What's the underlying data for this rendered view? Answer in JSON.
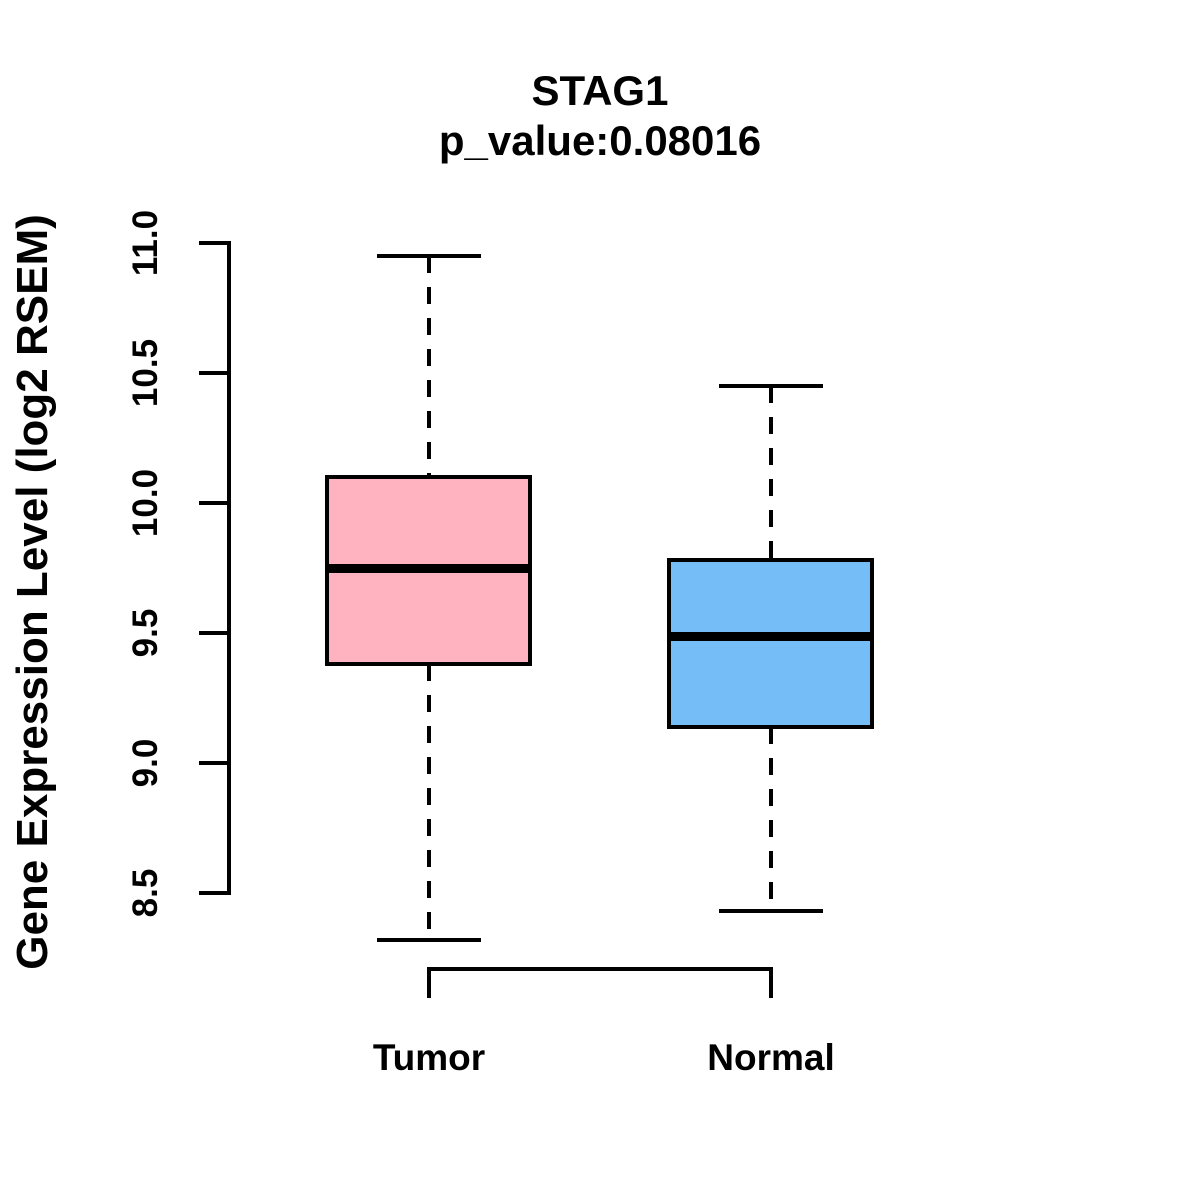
{
  "chart_data": {
    "type": "boxplot",
    "title": "STAG1",
    "subtitle": "p_value:0.08016",
    "p_value": 0.08016,
    "ylabel": "Gene Expression Level (log2 RSEM)",
    "categories": [
      "Tumor",
      "Normal"
    ],
    "yticks": [
      8.5,
      9.0,
      9.5,
      10.0,
      10.5,
      11.0
    ],
    "ytick_labels": [
      "8.5",
      "9.0",
      "9.5",
      "10.0",
      "10.5",
      "11.0"
    ],
    "ylim": [
      8.5,
      11.0
    ],
    "grid": false,
    "legend_position": "none",
    "series": [
      {
        "name": "Tumor",
        "color": "#FFB3C1",
        "whisker_low": 8.32,
        "q1": 9.38,
        "median": 9.75,
        "q3": 10.1,
        "whisker_high": 10.95
      },
      {
        "name": "Normal",
        "color": "#74BDF7",
        "whisker_low": 8.43,
        "q1": 9.14,
        "median": 9.49,
        "q3": 9.78,
        "whisker_high": 10.45
      }
    ],
    "colors": {
      "line": "#000000",
      "background": "#FFFFFF",
      "tumor_box": "#FFB3C1",
      "normal_box": "#74BDF7"
    }
  }
}
